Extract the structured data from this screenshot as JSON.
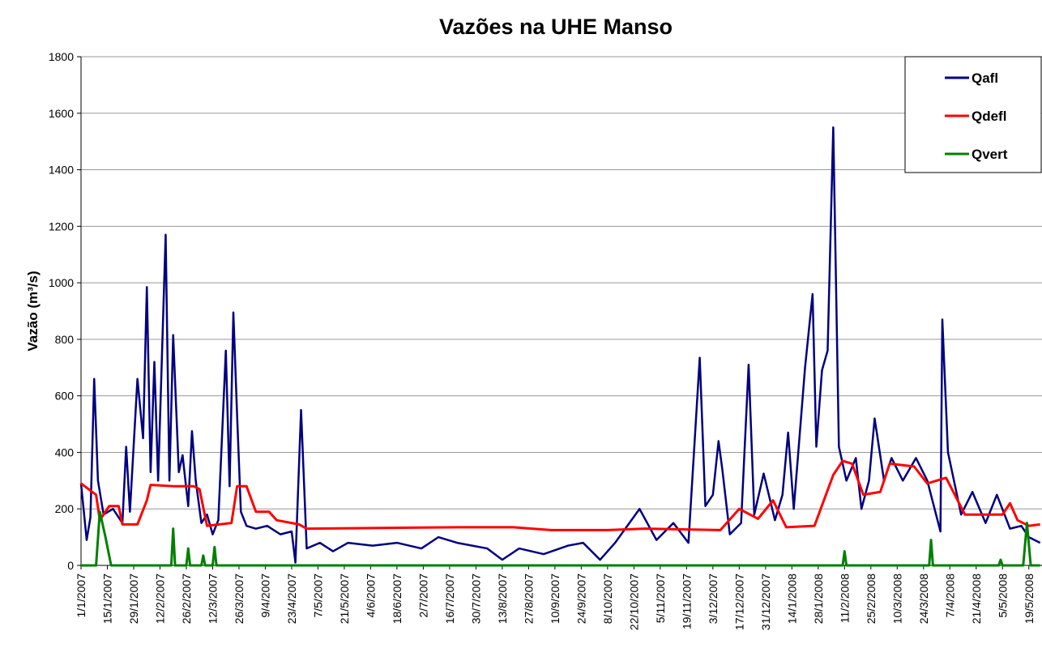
{
  "chart_data": {
    "type": "line",
    "title": "Vazões na UHE Manso",
    "y_label": "Vazão (m³/s)",
    "xlim": [
      "1/1/2007",
      "26/5/2008"
    ],
    "xticks": [
      "1/1/2007",
      "15/1/2007",
      "29/1/2007",
      "12/2/2007",
      "26/2/2007",
      "12/3/2007",
      "26/3/2007",
      "9/4/2007",
      "23/4/2007",
      "7/5/2007",
      "21/5/2007",
      "4/6/2007",
      "18/6/2007",
      "2/7/2007",
      "16/7/2007",
      "30/7/2007",
      "13/8/2007",
      "27/8/2007",
      "10/9/2007",
      "24/9/2007",
      "8/10/2007",
      "22/10/2007",
      "5/11/2007",
      "19/11/2007",
      "3/12/2007",
      "17/12/2007",
      "31/12/2007",
      "14/1/2008",
      "28/1/2008",
      "11/2/2008",
      "25/2/2008",
      "10/3/2008",
      "24/3/2008",
      "7/4/2008",
      "21/4/2008",
      "5/5/2008",
      "19/5/2008"
    ],
    "ylim": [
      0,
      1800
    ],
    "yticks": [
      0,
      200,
      400,
      600,
      800,
      1000,
      1200,
      1400,
      1600,
      1800
    ],
    "grid": true,
    "legend": "top-right",
    "series": [
      {
        "name": "Qafl",
        "color": "#000080",
        "x": [
          "1/1/2007",
          "4/1/2007",
          "6/1/2007",
          "8/1/2007",
          "10/1/2007",
          "13/1/2007",
          "18/1/2007",
          "23/1/2007",
          "25/1/2007",
          "27/1/2007",
          "31/1/2007",
          "3/2/2007",
          "5/2/2007",
          "7/2/2007",
          "9/2/2007",
          "11/2/2007",
          "15/2/2007",
          "17/2/2007",
          "19/2/2007",
          "22/2/2007",
          "24/2/2007",
          "27/2/2007",
          "1/3/2007",
          "3/3/2007",
          "6/3/2007",
          "9/3/2007",
          "12/3/2007",
          "15/3/2007",
          "19/3/2007",
          "21/3/2007",
          "23/3/2007",
          "25/3/2007",
          "27/3/2007",
          "30/3/2007",
          "4/4/2007",
          "10/4/2007",
          "17/4/2007",
          "23/4/2007",
          "25/4/2007",
          "28/4/2007",
          "1/5/2007",
          "8/5/2007",
          "15/5/2007",
          "23/5/2007",
          "5/6/2007",
          "18/6/2007",
          "1/7/2007",
          "10/7/2007",
          "20/7/2007",
          "5/8/2007",
          "13/8/2007",
          "22/8/2007",
          "4/9/2007",
          "17/9/2007",
          "25/9/2007",
          "4/10/2007",
          "12/10/2007",
          "25/10/2007",
          "3/11/2007",
          "12/11/2007",
          "20/11/2007",
          "26/11/2007",
          "29/11/2007",
          "3/12/2007",
          "6/12/2007",
          "8/12/2007",
          "12/12/2007",
          "18/12/2007",
          "22/12/2007",
          "25/12/2007",
          "30/12/2007",
          "5/1/2008",
          "9/1/2008",
          "12/1/2008",
          "15/1/2008",
          "21/1/2008",
          "25/1/2008",
          "27/1/2008",
          "30/1/2008",
          "2/2/2008",
          "5/2/2008",
          "8/2/2008",
          "12/2/2008",
          "17/2/2008",
          "20/2/2008",
          "24/2/2008",
          "27/2/2008",
          "3/3/2008",
          "7/3/2008",
          "13/3/2008",
          "20/3/2008",
          "26/3/2008",
          "2/4/2008",
          "3/4/2008",
          "6/4/2008",
          "13/4/2008",
          "19/4/2008",
          "26/4/2008",
          "2/5/2008",
          "9/5/2008",
          "15/5/2008",
          "19/5/2008",
          "25/5/2008"
        ],
        "values": [
          290,
          90,
          170,
          660,
          300,
          180,
          200,
          150,
          420,
          190,
          660,
          450,
          985,
          330,
          720,
          300,
          1170,
          300,
          815,
          330,
          390,
          210,
          475,
          300,
          150,
          180,
          110,
          160,
          760,
          280,
          895,
          530,
          190,
          140,
          130,
          140,
          110,
          120,
          10,
          550,
          60,
          80,
          50,
          80,
          70,
          80,
          60,
          100,
          80,
          60,
          20,
          60,
          40,
          70,
          80,
          20,
          80,
          200,
          90,
          150,
          80,
          735,
          210,
          250,
          440,
          340,
          110,
          150,
          710,
          180,
          325,
          160,
          250,
          470,
          200,
          700,
          960,
          420,
          690,
          760,
          1550,
          420,
          300,
          380,
          200,
          300,
          520,
          300,
          380,
          300,
          380,
          300,
          120,
          870,
          400,
          180,
          260,
          150,
          250,
          130,
          140,
          100,
          80
        ]
      },
      {
        "name": "Qdefl",
        "color": "#ff0000",
        "x": [
          "1/1/2007",
          "9/1/2007",
          "11/1/2007",
          "16/1/2007",
          "21/1/2007",
          "23/1/2007",
          "31/1/2007",
          "5/2/2007",
          "7/2/2007",
          "20/2/2007",
          "2/3/2007",
          "5/3/2007",
          "9/3/2007",
          "22/3/2007",
          "25/3/2007",
          "30/3/2007",
          "4/4/2007",
          "11/4/2007",
          "15/4/2007",
          "27/4/2007",
          "1/5/2007",
          "20/7/2007",
          "19/8/2007",
          "8/9/2007",
          "8/10/2007",
          "28/10/2007",
          "7/12/2007",
          "17/12/2007",
          "27/12/2007",
          "4/1/2008",
          "11/1/2008",
          "26/1/2008",
          "5/2/2008",
          "10/2/2008",
          "15/2/2008",
          "21/2/2008",
          "1/3/2008",
          "6/3/2008",
          "19/3/2008",
          "26/3/2008",
          "5/4/2008",
          "15/4/2008",
          "5/5/2008",
          "9/5/2008",
          "13/5/2008",
          "19/5/2008",
          "25/5/2008"
        ],
        "values": [
          290,
          250,
          160,
          210,
          210,
          145,
          145,
          230,
          285,
          280,
          280,
          270,
          140,
          150,
          280,
          280,
          190,
          190,
          160,
          145,
          130,
          135,
          135,
          125,
          125,
          130,
          125,
          200,
          165,
          230,
          135,
          140,
          320,
          370,
          360,
          250,
          260,
          360,
          350,
          290,
          310,
          180,
          180,
          220,
          160,
          140,
          145
        ]
      },
      {
        "name": "Qvert",
        "color": "#008000",
        "x": [
          "1/1/2007",
          "9/1/2007",
          "11/1/2007",
          "14/1/2007",
          "17/1/2007",
          "18/2/2007",
          "19/2/2007",
          "20/2/2007",
          "26/2/2007",
          "27/2/2007",
          "28/2/2007",
          "6/3/2007",
          "7/3/2007",
          "8/3/2007",
          "12/3/2007",
          "13/3/2007",
          "14/3/2007",
          "10/2/2008",
          "11/2/2008",
          "12/2/2008",
          "27/3/2008",
          "28/3/2008",
          "29/3/2008",
          "3/5/2008",
          "4/5/2008",
          "5/5/2008",
          "16/5/2008",
          "18/5/2008",
          "20/5/2008",
          "25/5/2008"
        ],
        "values": [
          0,
          0,
          190,
          100,
          0,
          0,
          130,
          0,
          0,
          60,
          0,
          0,
          35,
          0,
          0,
          65,
          0,
          0,
          50,
          0,
          0,
          90,
          0,
          0,
          20,
          0,
          0,
          150,
          0,
          0
        ]
      }
    ]
  }
}
